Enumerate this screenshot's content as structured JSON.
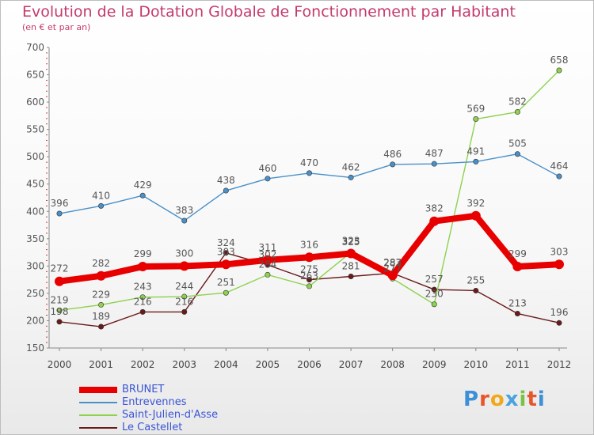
{
  "title": "Evolution de la Dotation Globale de Fonctionnement par Habitant",
  "subtitle": "(en € et par an)",
  "logo": {
    "text": "Proxiti",
    "letter_colors": [
      "#3d8fd6",
      "#e8542b",
      "#f2a81d",
      "#4aa3df",
      "#7cc242",
      "#e8542b",
      "#3d8fd6"
    ]
  },
  "chart_data": {
    "type": "line",
    "title": "Evolution de la Dotation Globale de Fonctionnement par Habitant",
    "subtitle": "(en € et par an)",
    "xlabel": "",
    "ylabel": "",
    "x": [
      "2000",
      "2001",
      "2002",
      "2003",
      "2004",
      "2005",
      "2006",
      "2007",
      "2008",
      "2009",
      "2010",
      "2011",
      "2012"
    ],
    "ylim": [
      150,
      700
    ],
    "yticks": [
      150,
      200,
      250,
      300,
      350,
      400,
      450,
      500,
      550,
      600,
      650,
      700
    ],
    "grid": false,
    "legend_position": "bottom-left",
    "series": [
      {
        "name": "Le Castellet",
        "color": "#6b1a1a",
        "values": [
          198,
          189,
          216,
          216,
          324,
          302,
          275,
          281,
          287,
          257,
          255,
          213,
          196
        ]
      },
      {
        "name": "Saint-Julien-d'Asse",
        "color": "#8fd14f",
        "values": [
          219,
          229,
          243,
          244,
          251,
          284,
          263,
          325,
          277,
          230,
          569,
          582,
          658
        ]
      },
      {
        "name": "Entrevennes",
        "color": "#4a90c8",
        "values": [
          396,
          410,
          429,
          383,
          438,
          460,
          470,
          462,
          486,
          487,
          491,
          505,
          464
        ]
      },
      {
        "name": "BRUNET",
        "color": "#e80000",
        "values": [
          272,
          282,
          299,
          300,
          303,
          311,
          316,
          323,
          283,
          382,
          392,
          299,
          303
        ]
      }
    ],
    "legend_order": [
      "BRUNET",
      "Entrevennes",
      "Saint-Julien-d'Asse",
      "Le Castellet"
    ]
  }
}
